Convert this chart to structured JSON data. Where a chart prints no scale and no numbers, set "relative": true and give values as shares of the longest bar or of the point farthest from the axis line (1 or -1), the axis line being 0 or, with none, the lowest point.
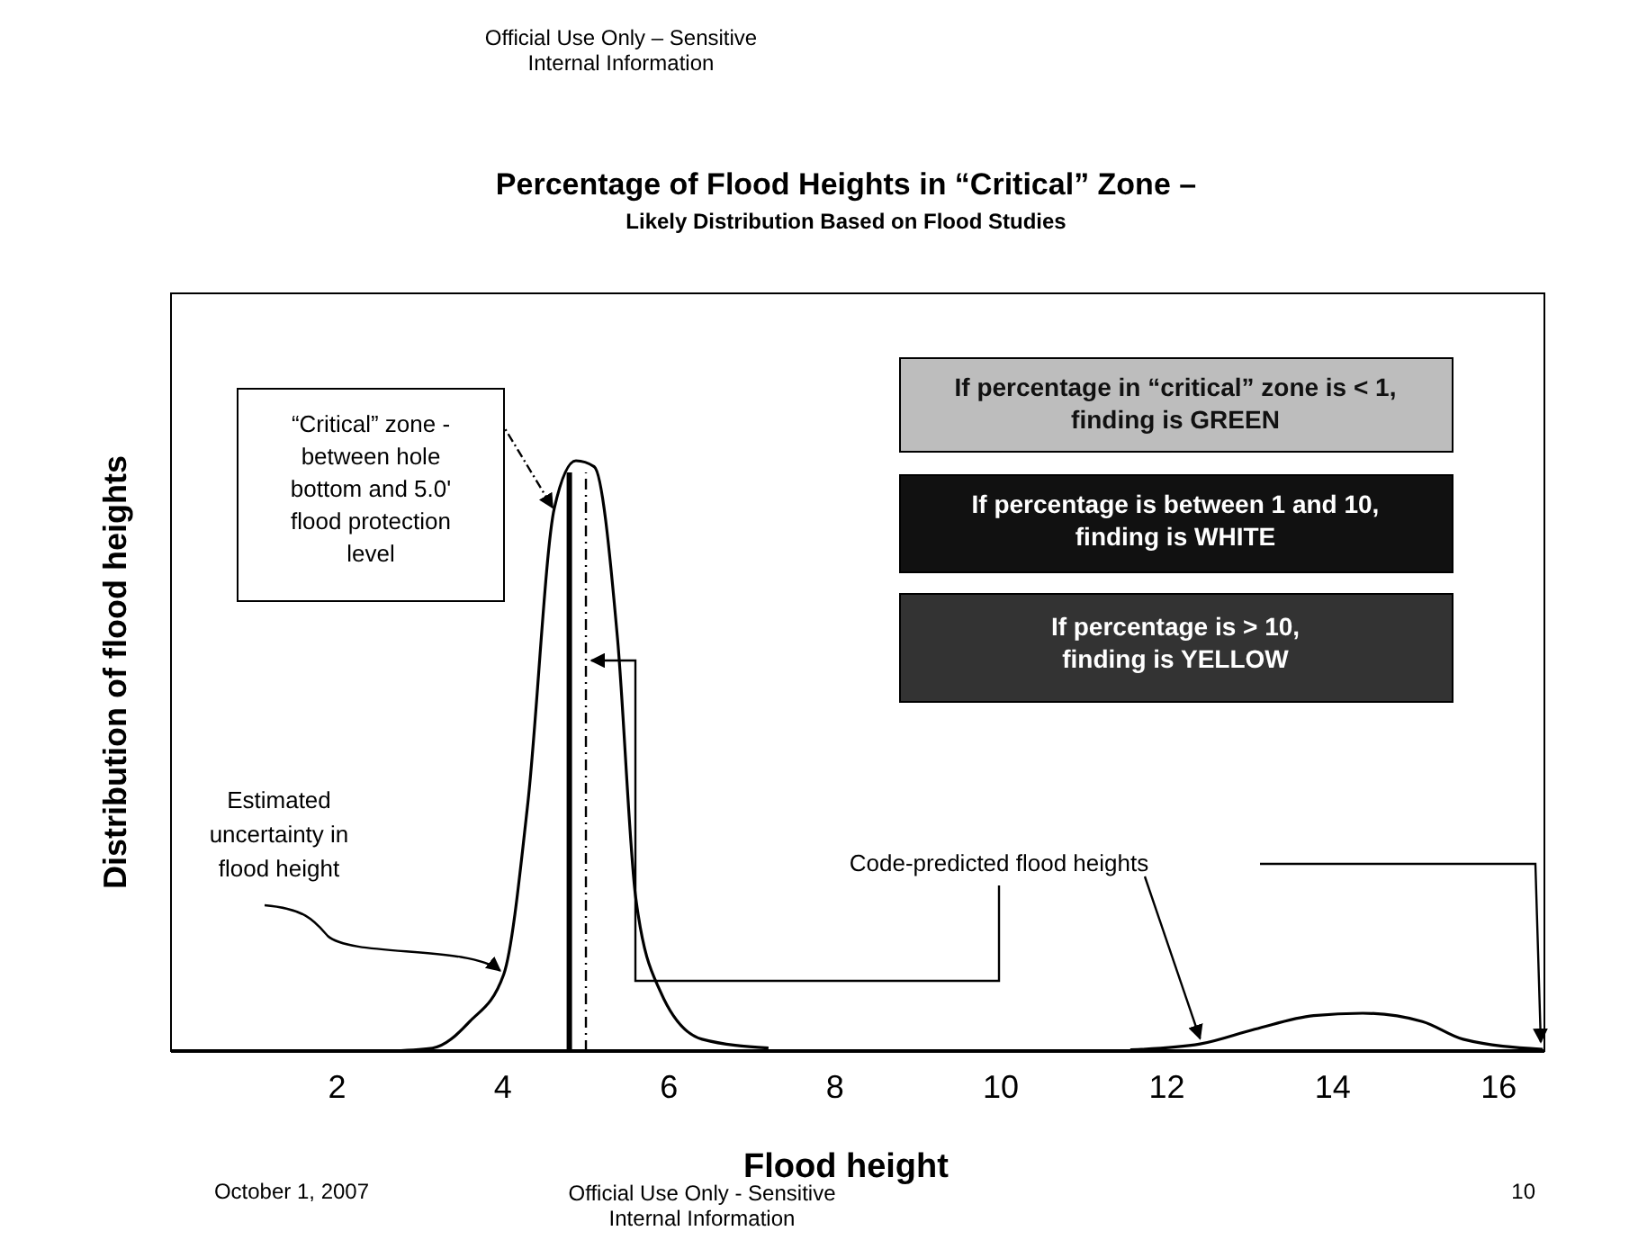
{
  "chart_data": {
    "type": "line",
    "title": "Percentage of Flood Heights in “Critical” Zone –",
    "subtitle": "Likely Distribution Based on Flood Studies",
    "xlabel": "Flood height",
    "ylabel": "Distribution of flood heights",
    "relative": true,
    "xlim": [
      0,
      16.55
    ],
    "xticks": [
      2,
      4,
      6,
      8,
      10,
      12,
      14,
      16
    ],
    "grid": false,
    "legend": false,
    "marker": "none",
    "line_style": "solid",
    "series": [
      {
        "color": "#000000",
        "x": [
          2.6,
          3.15,
          3.6,
          4.01,
          4.3,
          4.62,
          4.88,
          5.1,
          5.38,
          5.6,
          5.9,
          6.4,
          7.2
        ],
        "values": [
          0,
          0.005,
          0.05,
          0.13,
          0.42,
          0.92,
          1,
          0.99,
          0.7,
          0.26,
          0.1,
          0.02,
          0.005
        ]
      },
      {
        "color": "#000000",
        "x": [
          11.56,
          12.4,
          13.06,
          13.77,
          14.36,
          15.08,
          15.57,
          16.53
        ],
        "values": [
          0.002,
          0.012,
          0.037,
          0.06,
          0.064,
          0.05,
          0.02,
          0.003
        ]
      }
    ],
    "ref_lines": [
      {
        "axis": "x",
        "value": 4.8,
        "color": "#000000",
        "line_style": "solid"
      },
      {
        "axis": "x",
        "value": 5.0,
        "color": "#000000",
        "line_style": "dashed"
      }
    ],
    "annotations": [
      "“Critical” zone - between hole bottom and 5.0' flood protection level",
      {
        "text": "Estimated uncertainty in flood height",
        "x": 4.01,
        "y": 0.13
      },
      {
        "text": "Code-predicted flood heights",
        "x": 12.4,
        "y": 0.012
      },
      "If percentage in “critical” zone is < 1, finding is GREEN",
      "If percentage is between 1 and 10, finding is WHITE",
      "If percentage is > 10, finding is YELLOW",
      "Official Use Only – Sensitive Internal Information",
      "October 1, 2007",
      "Official Use Only - Sensitive Internal Information",
      "10"
    ]
  }
}
